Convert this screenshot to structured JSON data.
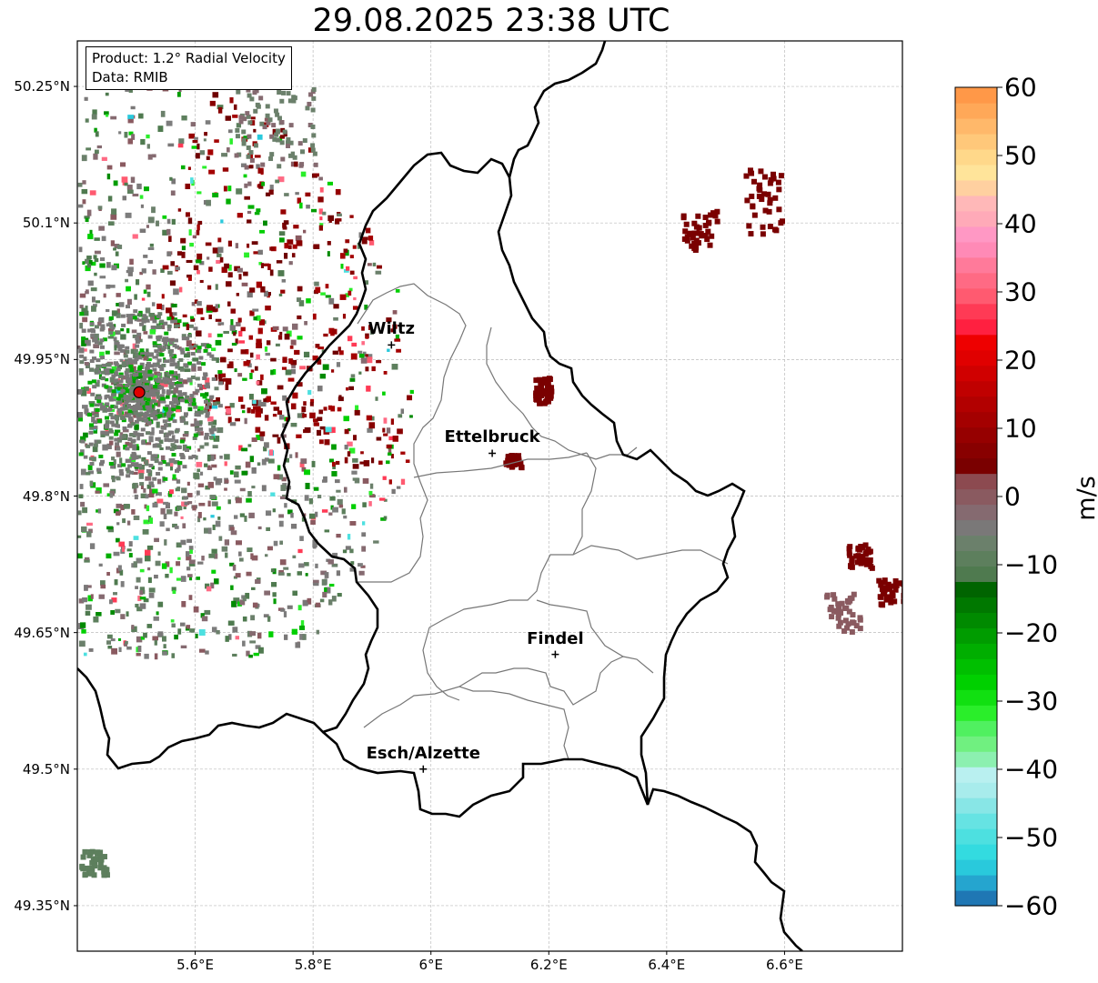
{
  "title": "29.08.2025 23:38 UTC",
  "info_box": {
    "product": "Product: 1.2° Radial Velocity",
    "data_source": "Data: RMIB"
  },
  "map": {
    "lon_range": [
      5.4,
      6.8
    ],
    "lat_range": [
      49.3,
      50.3
    ],
    "lat_ticks": [
      {
        "value": 50.25,
        "label": "50.25°N"
      },
      {
        "value": 50.1,
        "label": "50.1°N"
      },
      {
        "value": 49.95,
        "label": "49.95°N"
      },
      {
        "value": 49.8,
        "label": "49.8°N"
      },
      {
        "value": 49.65,
        "label": "49.65°N"
      },
      {
        "value": 49.5,
        "label": "49.5°N"
      },
      {
        "value": 49.35,
        "label": "49.35°N"
      }
    ],
    "lon_ticks": [
      {
        "value": 5.6,
        "label": "5.6°E"
      },
      {
        "value": 5.8,
        "label": "5.8°E"
      },
      {
        "value": 6.0,
        "label": "6°E"
      },
      {
        "value": 6.2,
        "label": "6.2°E"
      },
      {
        "value": 6.4,
        "label": "6.4°E"
      },
      {
        "value": 6.6,
        "label": "6.6°E"
      }
    ],
    "gridlines": true,
    "radar_site": {
      "lon": 5.505,
      "lat": 49.914,
      "color": "#e00000"
    },
    "cities": [
      {
        "name": "Wiltz",
        "lon": 5.933,
        "lat": 49.966
      },
      {
        "name": "Ettelbruck",
        "lon": 6.104,
        "lat": 49.847
      },
      {
        "name": "Findel",
        "lon": 6.211,
        "lat": 49.626
      },
      {
        "name": "Esch/Alzette",
        "lon": 5.987,
        "lat": 49.5
      }
    ]
  },
  "colorbar": {
    "unit": "m/s",
    "min": -60,
    "max": 60,
    "ticks": [
      {
        "value": 60,
        "label": "60"
      },
      {
        "value": 50,
        "label": "50"
      },
      {
        "value": 40,
        "label": "40"
      },
      {
        "value": 30,
        "label": "30"
      },
      {
        "value": 20,
        "label": "20"
      },
      {
        "value": 10,
        "label": "10"
      },
      {
        "value": 0,
        "label": "0"
      },
      {
        "value": -10,
        "label": "−10"
      },
      {
        "value": -20,
        "label": "−20"
      },
      {
        "value": -30,
        "label": "−30"
      },
      {
        "value": -40,
        "label": "−40"
      },
      {
        "value": -50,
        "label": "−50"
      },
      {
        "value": -60,
        "label": "−60"
      }
    ],
    "colors": [
      "#1f77b4",
      "#25a5cf",
      "#29c9dc",
      "#33dbe0",
      "#4de0e0",
      "#66e3e3",
      "#88e6e6",
      "#a8ecec",
      "#b9f0f0",
      "#8cf0b0",
      "#70f080",
      "#50f060",
      "#2aee2a",
      "#11e011",
      "#00d000",
      "#00bf00",
      "#00ae00",
      "#009c00",
      "#008a00",
      "#007800",
      "#006400",
      "#4f7a4f",
      "#5d7f5d",
      "#6b806b",
      "#7a7878",
      "#856a70",
      "#8a5a60",
      "#8c4a50",
      "#7a0000",
      "#880000",
      "#960000",
      "#a40000",
      "#b20000",
      "#c00000",
      "#d00000",
      "#e00000",
      "#ee0000",
      "#ff2040",
      "#ff3a55",
      "#ff5a70",
      "#ff6a84",
      "#ff7a9a",
      "#ff8ab6",
      "#ff98c4",
      "#ffaab8",
      "#ffb8b8",
      "#ffd0a0",
      "#ffe49a",
      "#ffd88a",
      "#ffc87a",
      "#ffb86a",
      "#ffa858",
      "#ff9848"
    ]
  }
}
